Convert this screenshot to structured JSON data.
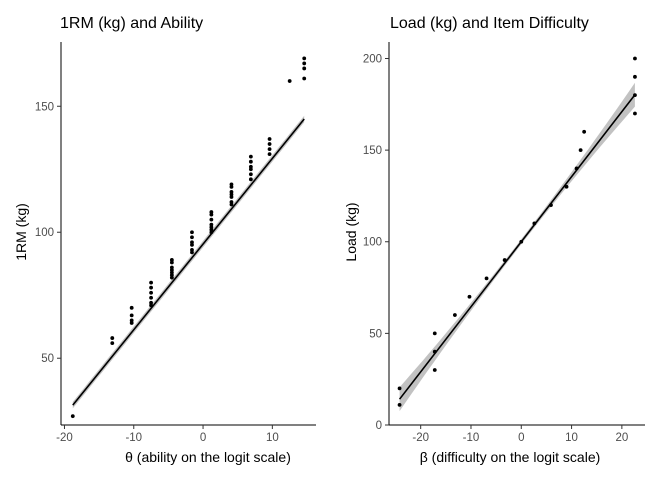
{
  "chart_data": [
    {
      "type": "scatter",
      "title": "1RM (kg) and Ability",
      "xlabel": "θ (ability on the logit scale)",
      "ylabel": "1RM (kg)",
      "xlim": [
        -20.5,
        16.3
      ],
      "ylim": [
        23.5,
        175.5
      ],
      "xticks": [
        -20,
        -10,
        0,
        10
      ],
      "yticks": [
        50,
        100,
        150
      ],
      "grid": false,
      "fit": {
        "method": "linear",
        "x_range": [
          -18.8,
          14.6
        ],
        "intercept": 95.3,
        "slope": 3.4,
        "band_half_width": 1.3
      },
      "points": [
        {
          "x": -18.8,
          "y": 27
        },
        {
          "x": -13.1,
          "y": 58
        },
        {
          "x": -13.1,
          "y": 56
        },
        {
          "x": -10.3,
          "y": 70
        },
        {
          "x": -10.3,
          "y": 67
        },
        {
          "x": -10.3,
          "y": 65
        },
        {
          "x": -10.3,
          "y": 64
        },
        {
          "x": -7.5,
          "y": 80
        },
        {
          "x": -7.5,
          "y": 78
        },
        {
          "x": -7.5,
          "y": 76
        },
        {
          "x": -7.5,
          "y": 74
        },
        {
          "x": -7.5,
          "y": 72
        },
        {
          "x": -7.5,
          "y": 71
        },
        {
          "x": -4.5,
          "y": 89
        },
        {
          "x": -4.5,
          "y": 88
        },
        {
          "x": -4.5,
          "y": 86
        },
        {
          "x": -4.5,
          "y": 85
        },
        {
          "x": -4.5,
          "y": 84
        },
        {
          "x": -4.5,
          "y": 83
        },
        {
          "x": -4.5,
          "y": 82
        },
        {
          "x": -1.6,
          "y": 100
        },
        {
          "x": -1.6,
          "y": 98
        },
        {
          "x": -1.6,
          "y": 96
        },
        {
          "x": -1.6,
          "y": 95
        },
        {
          "x": -1.6,
          "y": 93
        },
        {
          "x": -1.6,
          "y": 92
        },
        {
          "x": 1.2,
          "y": 108
        },
        {
          "x": 1.2,
          "y": 107
        },
        {
          "x": 1.2,
          "y": 105
        },
        {
          "x": 1.2,
          "y": 103
        },
        {
          "x": 1.2,
          "y": 102
        },
        {
          "x": 1.2,
          "y": 101
        },
        {
          "x": 1.2,
          "y": 100
        },
        {
          "x": 4.1,
          "y": 119
        },
        {
          "x": 4.1,
          "y": 118
        },
        {
          "x": 4.1,
          "y": 116
        },
        {
          "x": 4.1,
          "y": 115
        },
        {
          "x": 4.1,
          "y": 114
        },
        {
          "x": 4.1,
          "y": 112
        },
        {
          "x": 4.1,
          "y": 111
        },
        {
          "x": 6.9,
          "y": 130
        },
        {
          "x": 6.9,
          "y": 128
        },
        {
          "x": 6.9,
          "y": 126
        },
        {
          "x": 6.9,
          "y": 125
        },
        {
          "x": 6.9,
          "y": 123
        },
        {
          "x": 6.9,
          "y": 121
        },
        {
          "x": 9.6,
          "y": 137
        },
        {
          "x": 9.6,
          "y": 135
        },
        {
          "x": 9.6,
          "y": 133
        },
        {
          "x": 9.6,
          "y": 131
        },
        {
          "x": 12.5,
          "y": 160
        },
        {
          "x": 14.6,
          "y": 169
        },
        {
          "x": 14.6,
          "y": 167
        },
        {
          "x": 14.6,
          "y": 165
        },
        {
          "x": 14.6,
          "y": 161
        }
      ]
    },
    {
      "type": "scatter",
      "title": "Load (kg) and Item Difficulty",
      "xlabel": "β (difficulty on the logit scale)",
      "ylabel": "Load (kg)",
      "xlim": [
        -26.3,
        24.6
      ],
      "ylim": [
        0,
        209
      ],
      "xticks": [
        -20,
        -10,
        0,
        10,
        20
      ],
      "yticks": [
        0,
        50,
        100,
        150,
        200
      ],
      "grid": false,
      "fit": {
        "method": "linear",
        "x_range": [
          -24.2,
          22.6
        ],
        "intercept": 100,
        "slope": 3.55,
        "band_half_width_center": 1.4,
        "band_half_width_edge": 6.5
      },
      "points": [
        {
          "x": -24.2,
          "y": 20
        },
        {
          "x": -24.2,
          "y": 11
        },
        {
          "x": -17.2,
          "y": 50
        },
        {
          "x": -17.2,
          "y": 40
        },
        {
          "x": -17.2,
          "y": 30
        },
        {
          "x": -13.2,
          "y": 60
        },
        {
          "x": -10.3,
          "y": 70
        },
        {
          "x": -6.9,
          "y": 80
        },
        {
          "x": -3.3,
          "y": 90
        },
        {
          "x": 0.0,
          "y": 100
        },
        {
          "x": 2.6,
          "y": 110
        },
        {
          "x": 5.9,
          "y": 120
        },
        {
          "x": 9.0,
          "y": 130
        },
        {
          "x": 11.0,
          "y": 140
        },
        {
          "x": 11.8,
          "y": 150
        },
        {
          "x": 12.5,
          "y": 160
        },
        {
          "x": 22.6,
          "y": 200
        },
        {
          "x": 22.6,
          "y": 190
        },
        {
          "x": 22.6,
          "y": 180
        },
        {
          "x": 22.6,
          "y": 170
        }
      ]
    }
  ]
}
